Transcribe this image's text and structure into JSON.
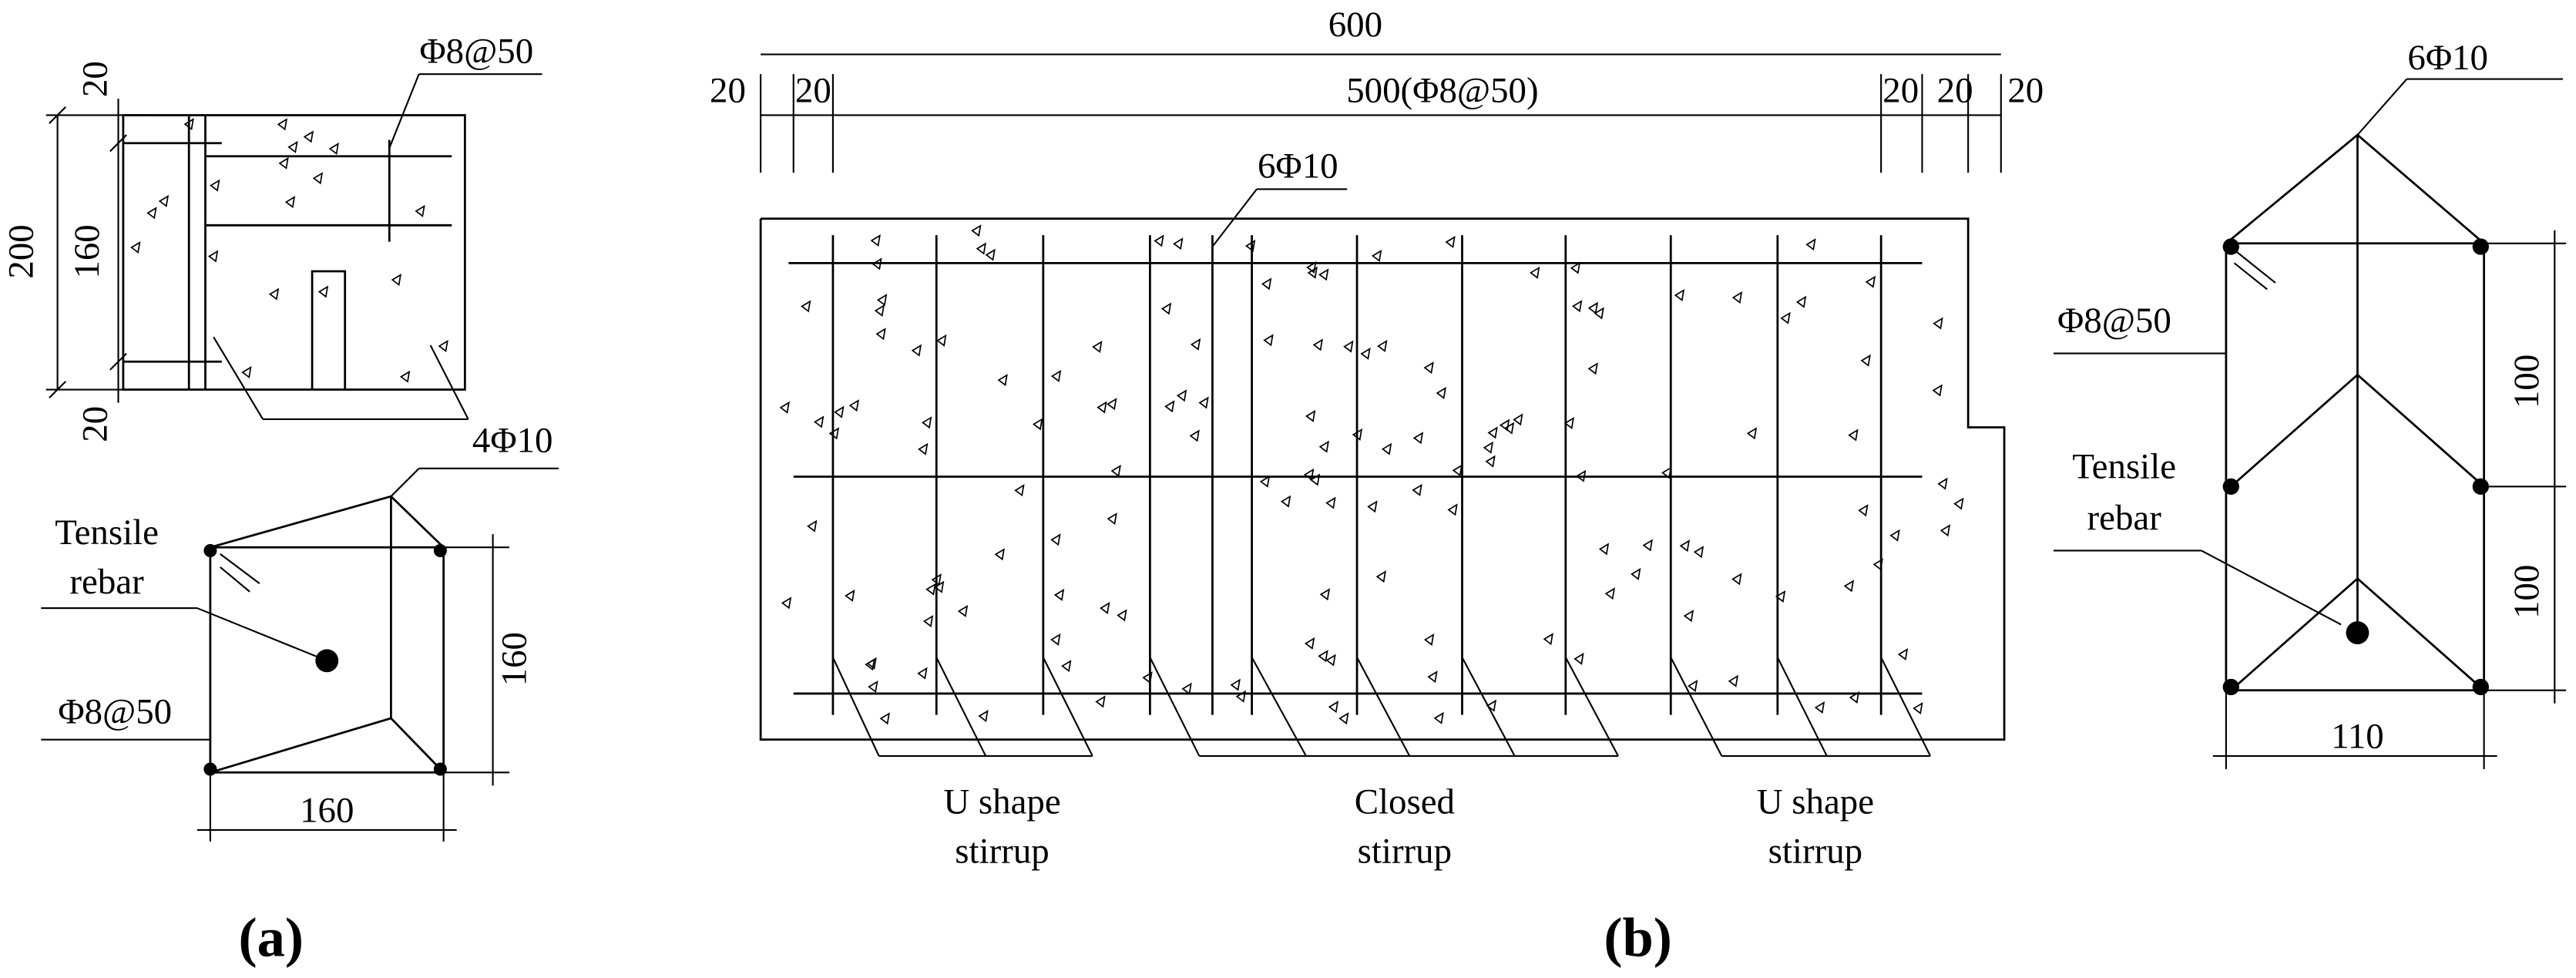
{
  "panel_a": {
    "caption": "(a)",
    "top": {
      "dims": [
        "20",
        "160",
        "20",
        "200"
      ],
      "stirrup": "Φ8@50",
      "rebar": "4Φ10"
    },
    "bottom": {
      "tensile": [
        "Tensile",
        "rebar"
      ],
      "stirrup": "Φ8@50",
      "height": "160",
      "width": "160"
    }
  },
  "panel_b": {
    "caption": "(b)",
    "elevation": {
      "total": "600",
      "spans": [
        "20",
        "20",
        "500(Φ8@50)",
        "20",
        "20",
        "20"
      ],
      "rebar": "6Φ10",
      "labels": [
        [
          "U shape",
          "stirrup"
        ],
        [
          "Closed",
          "stirrup"
        ],
        [
          "U shape",
          "stirrup"
        ]
      ]
    },
    "section": {
      "rebar": "6Φ10",
      "stirrup": "Φ8@50",
      "heights": [
        "100",
        "100"
      ],
      "tensile": [
        "Tensile",
        "rebar"
      ],
      "width": "110"
    }
  }
}
